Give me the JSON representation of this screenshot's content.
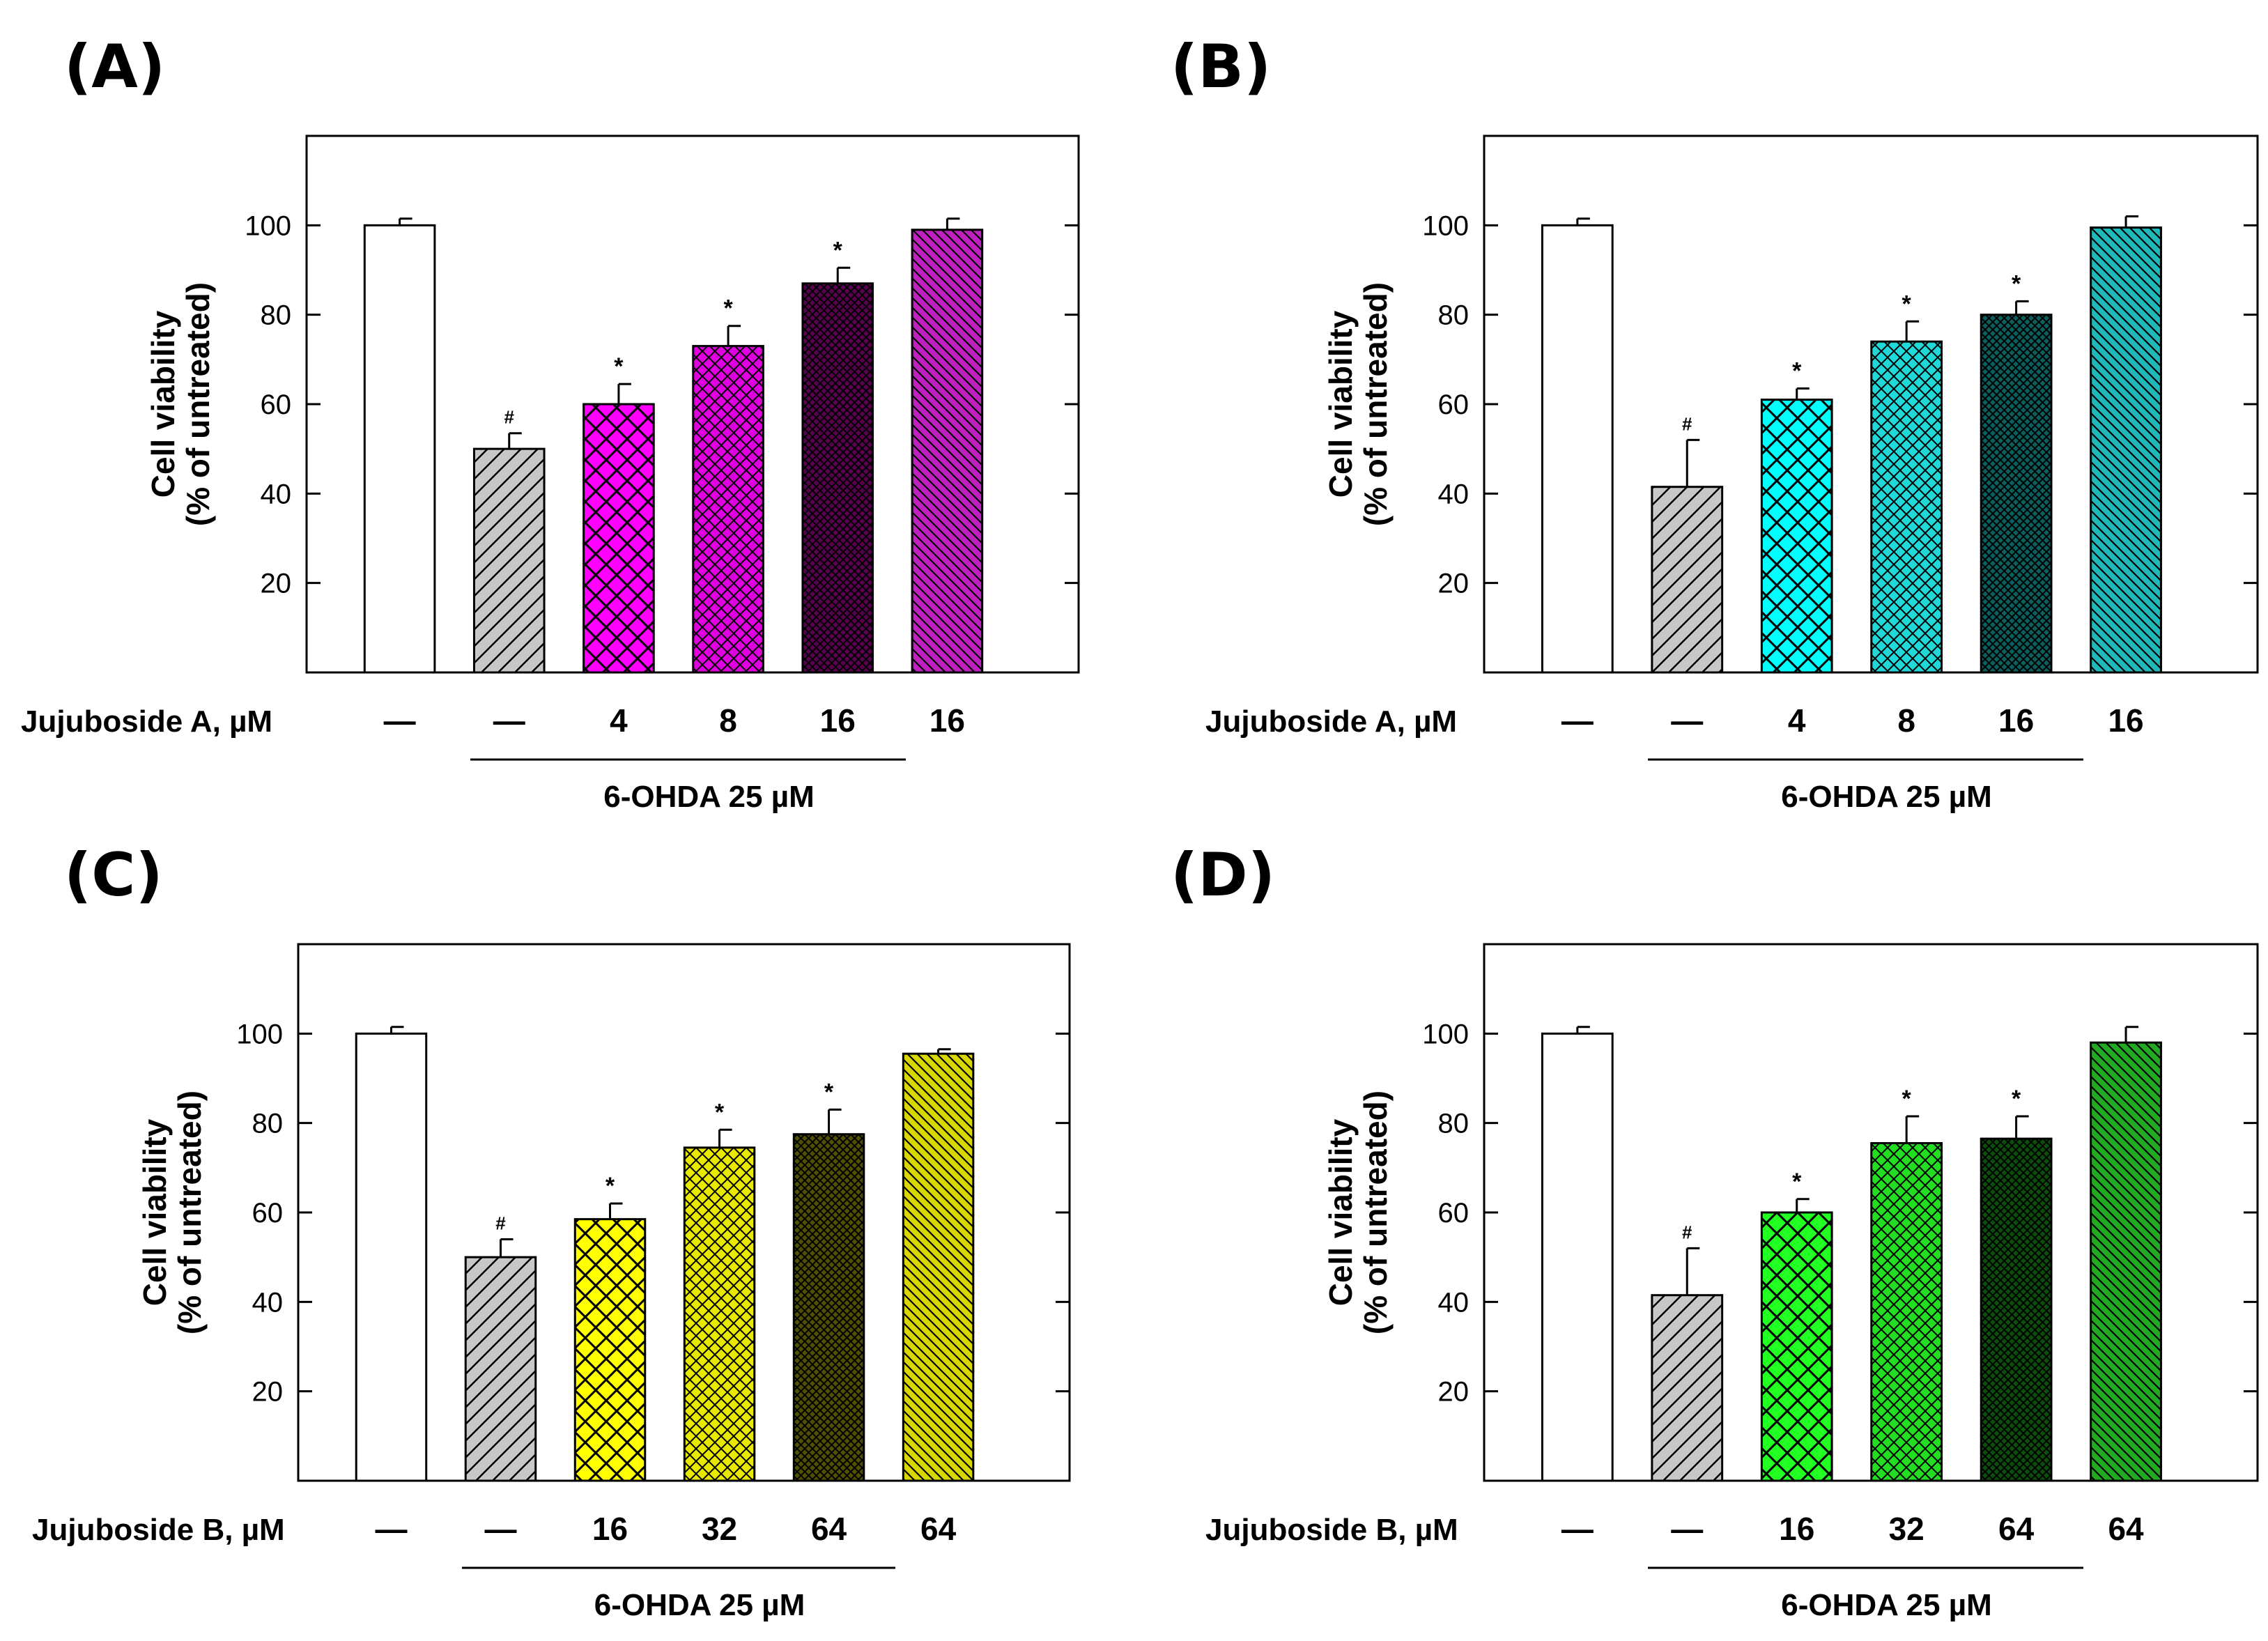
{
  "colors": {
    "control": "#ffffff",
    "ohda": "#c8c8c8",
    "panelA": [
      "#ff00ff",
      "#e000e0",
      "#5a0050",
      "#c020c0"
    ],
    "panelB": [
      "#00ffff",
      "#20d8d8",
      "#0a5f5f",
      "#20b8b8"
    ],
    "panelC": [
      "#ffff00",
      "#e8e800",
      "#505000",
      "#d8d800"
    ],
    "panelD": [
      "#22ff22",
      "#22dd22",
      "#0a4f0a",
      "#22aa22"
    ]
  },
  "chart_data": [
    {
      "type": "bar",
      "panel_label": "(A)",
      "ylabel_line1": "Cell viability",
      "ylabel_line2": "(% of untreated)",
      "ylim": [
        0,
        120
      ],
      "yticks": [
        20,
        40,
        60,
        80,
        100
      ],
      "row_label": "Jujuboside A, µM",
      "doses": [
        "—",
        "—",
        "4",
        "8",
        "16",
        "16"
      ],
      "group_label": "6-OHDA 25 µM",
      "values": [
        100,
        50,
        60,
        73,
        87,
        99
      ],
      "errors": [
        1.5,
        3.5,
        4.5,
        4.5,
        3.5,
        2.5
      ],
      "markers": [
        "",
        "#",
        "*",
        "*",
        "*",
        ""
      ]
    },
    {
      "type": "bar",
      "panel_label": "(B)",
      "ylabel_line1": "Cell viability",
      "ylabel_line2": "(% of untreated)",
      "ylim": [
        0,
        120
      ],
      "yticks": [
        20,
        40,
        60,
        80,
        100
      ],
      "row_label": "Jujuboside A, µM",
      "doses": [
        "—",
        "—",
        "4",
        "8",
        "16",
        "16"
      ],
      "group_label": "6-OHDA 25 µM",
      "values": [
        100,
        41.5,
        61,
        74,
        80,
        99.5
      ],
      "errors": [
        1.5,
        10.5,
        2.5,
        4.5,
        3,
        2.5
      ],
      "markers": [
        "",
        "#",
        "*",
        "*",
        "*",
        ""
      ]
    },
    {
      "type": "bar",
      "panel_label": "(C)",
      "ylabel_line1": "Cell viability",
      "ylabel_line2": "(% of untreated)",
      "ylim": [
        0,
        120
      ],
      "yticks": [
        20,
        40,
        60,
        80,
        100
      ],
      "row_label": "Jujuboside B, µM",
      "doses": [
        "—",
        "—",
        "16",
        "32",
        "64",
        "64"
      ],
      "group_label": "6-OHDA 25 µM",
      "values": [
        100,
        50,
        58.5,
        74.5,
        77.5,
        95.5
      ],
      "errors": [
        1.5,
        4,
        3.5,
        4,
        5.5,
        1
      ],
      "markers": [
        "",
        "#",
        "*",
        "*",
        "*",
        ""
      ]
    },
    {
      "type": "bar",
      "panel_label": "(D)",
      "ylabel_line1": "Cell viability",
      "ylabel_line2": "(% of untreated)",
      "ylim": [
        0,
        120
      ],
      "yticks": [
        20,
        40,
        60,
        80,
        100
      ],
      "row_label": "Jujuboside B, µM",
      "doses": [
        "—",
        "—",
        "16",
        "32",
        "64",
        "64"
      ],
      "group_label": "6-OHDA 25 µM",
      "values": [
        100,
        41.5,
        60,
        75.5,
        76.5,
        98
      ],
      "errors": [
        1.5,
        10.5,
        3,
        6,
        5,
        3.5
      ],
      "markers": [
        "",
        "#",
        "*",
        "*",
        "*",
        ""
      ]
    }
  ]
}
